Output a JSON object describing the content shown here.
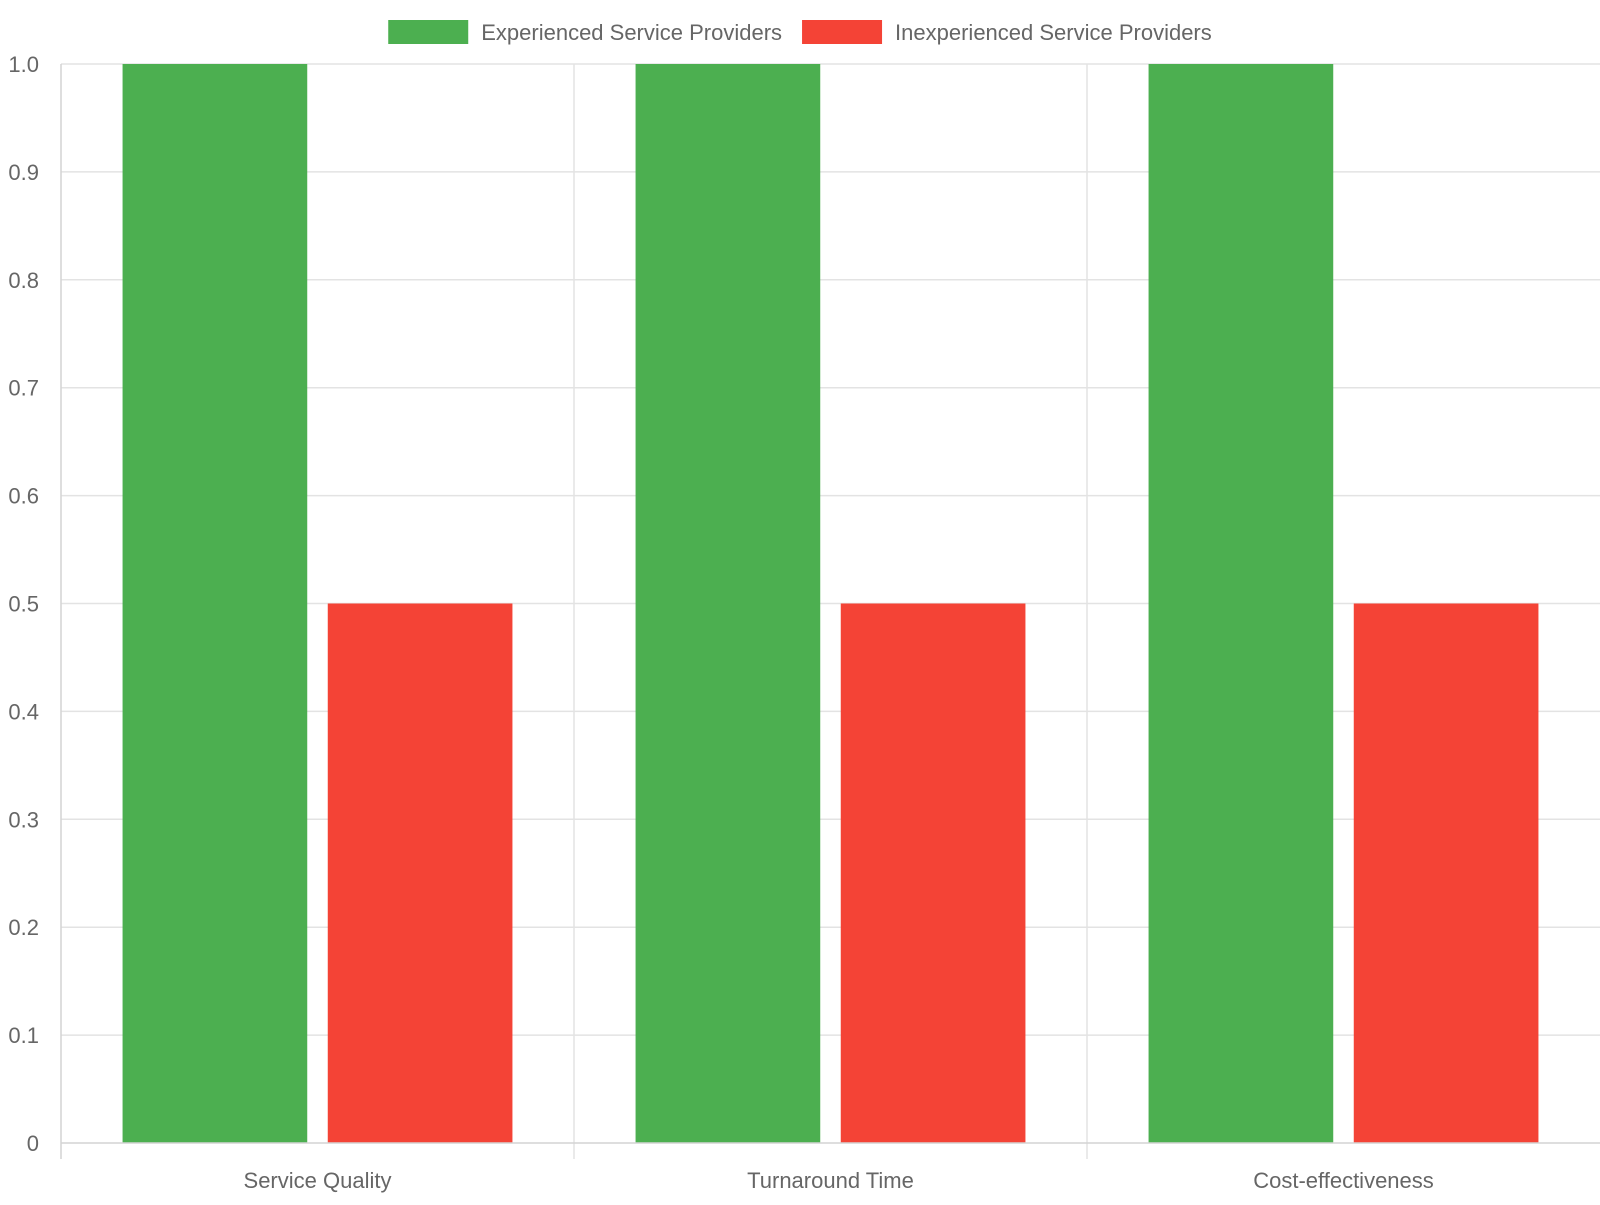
{
  "chart_data": {
    "type": "bar",
    "title": "",
    "xlabel": "",
    "ylabel": "",
    "categories": [
      "Service Quality",
      "Turnaround Time",
      "Cost-effectiveness"
    ],
    "series": [
      {
        "name": "Experienced Service Providers",
        "color": "#4caf50",
        "values": [
          1.0,
          1.0,
          1.0
        ]
      },
      {
        "name": "Inexperienced Service Providers",
        "color": "#f44336",
        "values": [
          0.5,
          0.5,
          0.5
        ]
      }
    ],
    "ylim": [
      0,
      1.0
    ],
    "yticks": [
      "0",
      "0.1",
      "0.2",
      "0.3",
      "0.4",
      "0.5",
      "0.6",
      "0.7",
      "0.8",
      "0.9",
      "1.0"
    ],
    "grid": true,
    "legend_position": "top-center"
  }
}
